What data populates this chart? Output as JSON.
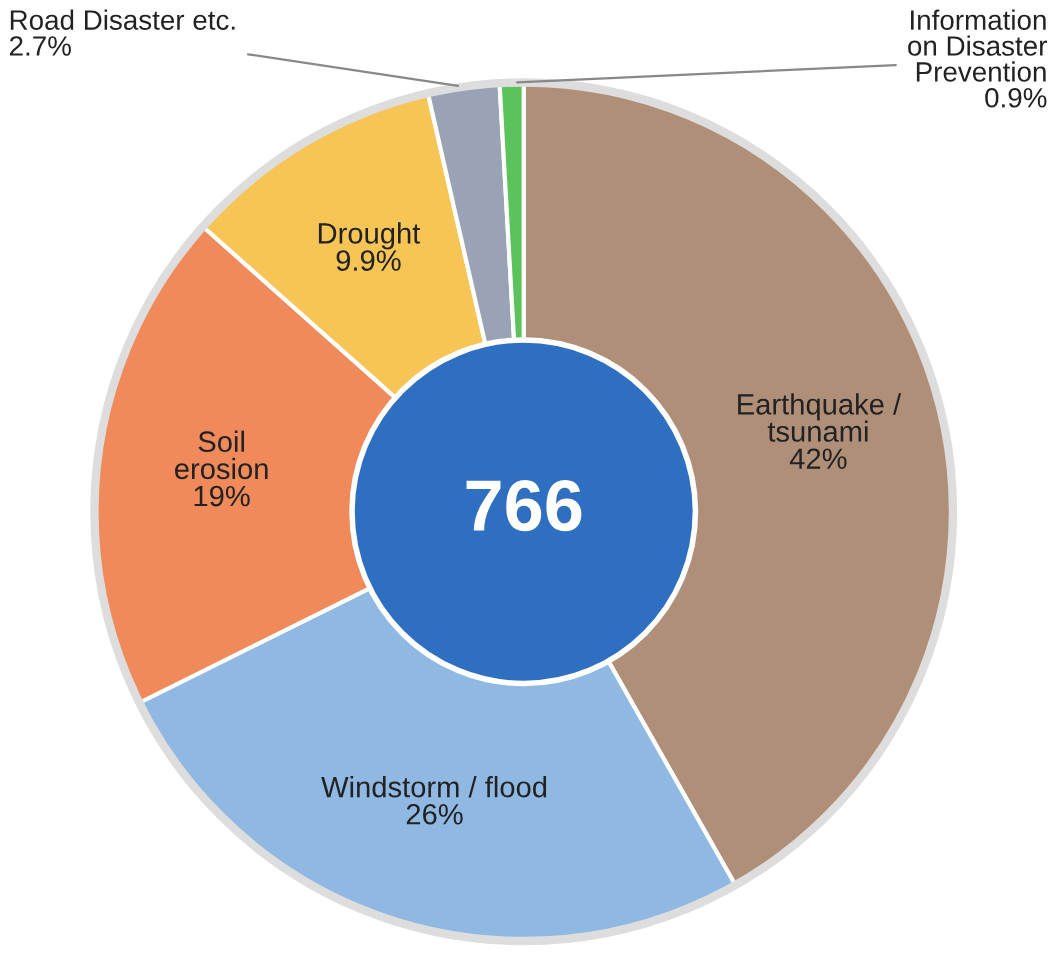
{
  "chart_data": {
    "type": "donut",
    "categories": [
      "Earthquake /\ntsunami",
      "Windstorm / flood",
      "Soil\nerosion",
      "Drought",
      "Road Disaster etc.",
      "Information\non Disaster\nPrevention"
    ],
    "values": [
      42,
      26,
      19,
      9.9,
      2.7,
      0.9
    ],
    "value_labels": [
      "42%",
      "26%",
      "19%",
      "9.9%",
      "2.7%",
      "0.9%"
    ],
    "colors": [
      "#b08f78",
      "#8fb8e2",
      "#f08a5a",
      "#f7c456",
      "#9aa3b5",
      "#5cc25c"
    ],
    "annotations": [
      "766"
    ]
  }
}
